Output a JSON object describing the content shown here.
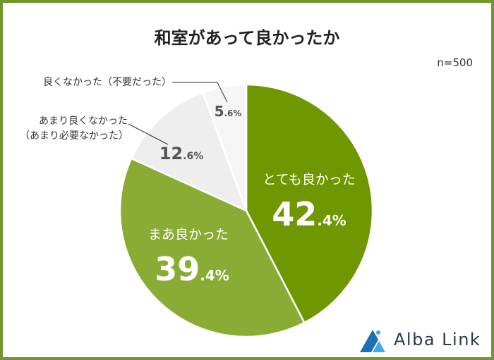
{
  "chart_data": {
    "type": "pie",
    "title": "和室があって良かったか",
    "sample_size": "n=500",
    "slices": [
      {
        "label": "とても良かった",
        "value": 42.4,
        "value_big": "42",
        "value_small": ".4%",
        "color": "#6f9700",
        "text_color": "#ffffff"
      },
      {
        "label": "まあ良かった",
        "value": 39.4,
        "value_big": "39",
        "value_small": ".4%",
        "color": "#8aab34",
        "text_color": "#ffffff"
      },
      {
        "label_lines": [
          "あまり良くなかった",
          "（あまり必要なかった）"
        ],
        "value": 12.6,
        "value_big": "12",
        "value_small": ".6%",
        "color": "#eeeeee",
        "text_color": "#555555"
      },
      {
        "label": "良くなかった（不要だった）",
        "value": 5.6,
        "value_big": "5",
        "value_small": ".6%",
        "color": "#f5f5f5",
        "text_color": "#555555"
      }
    ]
  },
  "logo": {
    "text": "Alba Link",
    "colors": [
      "#1f6fb5",
      "#3fa9e0"
    ]
  }
}
